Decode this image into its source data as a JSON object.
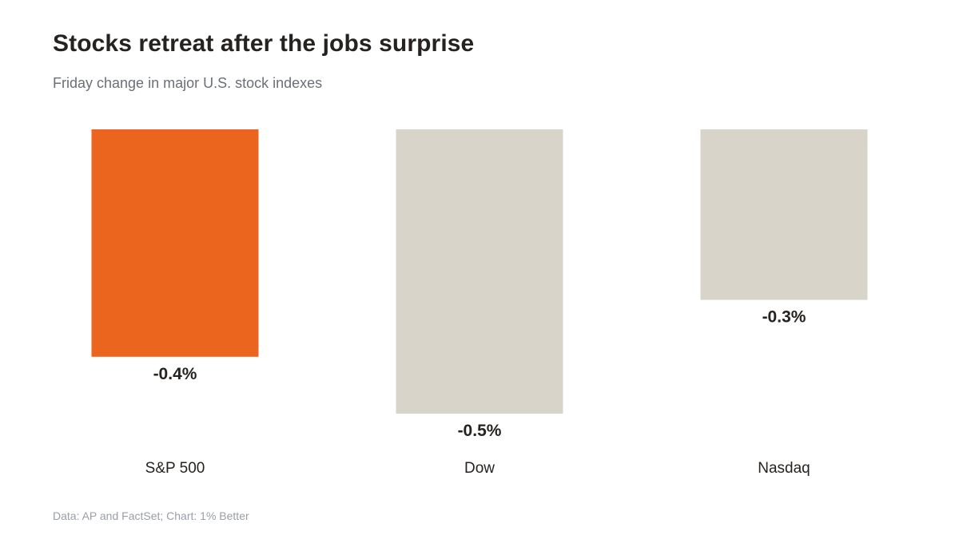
{
  "header": {
    "title": "Stocks retreat after the jobs surprise",
    "subtitle": "Friday change in major U.S. stock indexes"
  },
  "footer": {
    "source": "Data: AP and FactSet; Chart: 1% Better"
  },
  "colors": {
    "highlight": "#ec651f",
    "default": "#d9d4ca",
    "value_label": "#26221f",
    "category_label": "#26221f"
  },
  "chart_data": {
    "type": "bar",
    "categories": [
      "S&P 500",
      "Dow",
      "Nasdaq"
    ],
    "values": [
      -0.4,
      -0.5,
      -0.3
    ],
    "value_labels": [
      "-0.4%",
      "-0.5%",
      "-0.3%"
    ],
    "highlight_index": 0,
    "ylim": [
      -0.5,
      0
    ],
    "grid": false,
    "title": "Stocks retreat after the jobs surprise",
    "subtitle": "Friday change in major U.S. stock indexes",
    "xlabel": "",
    "ylabel": ""
  }
}
